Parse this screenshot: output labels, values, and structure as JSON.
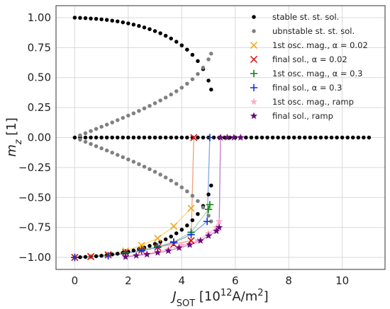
{
  "chart_data": {
    "type": "scatter",
    "xlabel": "J_SOT [10^12 A/m^2]",
    "ylabel": "m_z [1]",
    "xlim": [
      -0.7,
      11.6
    ],
    "ylim": [
      -1.1,
      1.1
    ],
    "xticks": [
      "0",
      "2",
      "4",
      "6",
      "8",
      "10"
    ],
    "yticks": [
      "1.00",
      "0.75",
      "0.50",
      "0.25",
      "0.00",
      "−0.25",
      "−0.50",
      "−0.75",
      "−1.00"
    ],
    "grid": true,
    "legend_position": "top-right",
    "series": [
      {
        "name": "stable  st. st. sol.",
        "marker": "dot",
        "color": "#000000",
        "points": [
          [
            0,
            1.0
          ],
          [
            0.2,
            0.998
          ],
          [
            0.4,
            0.996
          ],
          [
            0.6,
            0.993
          ],
          [
            0.8,
            0.99
          ],
          [
            1.0,
            0.986
          ],
          [
            1.2,
            0.981
          ],
          [
            1.4,
            0.975
          ],
          [
            1.6,
            0.969
          ],
          [
            1.8,
            0.961
          ],
          [
            2.0,
            0.952
          ],
          [
            2.2,
            0.942
          ],
          [
            2.4,
            0.931
          ],
          [
            2.6,
            0.918
          ],
          [
            2.8,
            0.904
          ],
          [
            3.0,
            0.888
          ],
          [
            3.2,
            0.87
          ],
          [
            3.4,
            0.849
          ],
          [
            3.6,
            0.826
          ],
          [
            3.8,
            0.799
          ],
          [
            4.0,
            0.769
          ],
          [
            4.2,
            0.733
          ],
          [
            4.4,
            0.69
          ],
          [
            4.6,
            0.638
          ],
          [
            4.8,
            0.571
          ],
          [
            5.0,
            0.475
          ],
          [
            5.1,
            0.4
          ],
          [
            0,
            -1.0
          ],
          [
            0.2,
            -0.998
          ],
          [
            0.4,
            -0.996
          ],
          [
            0.6,
            -0.993
          ],
          [
            0.8,
            -0.99
          ],
          [
            1.0,
            -0.986
          ],
          [
            1.2,
            -0.981
          ],
          [
            1.4,
            -0.975
          ],
          [
            1.6,
            -0.969
          ],
          [
            1.8,
            -0.961
          ],
          [
            2.0,
            -0.952
          ],
          [
            2.2,
            -0.942
          ],
          [
            2.4,
            -0.931
          ],
          [
            2.6,
            -0.918
          ],
          [
            2.8,
            -0.904
          ],
          [
            3.0,
            -0.888
          ],
          [
            3.2,
            -0.87
          ],
          [
            3.4,
            -0.849
          ],
          [
            3.6,
            -0.826
          ],
          [
            3.8,
            -0.799
          ],
          [
            4.0,
            -0.769
          ],
          [
            4.2,
            -0.733
          ],
          [
            4.4,
            -0.69
          ],
          [
            4.6,
            -0.638
          ],
          [
            4.8,
            -0.571
          ],
          [
            5.0,
            -0.475
          ],
          [
            5.1,
            -0.4
          ],
          [
            0,
            0
          ],
          [
            0.2,
            0
          ],
          [
            0.4,
            0
          ],
          [
            0.6,
            0
          ],
          [
            0.8,
            0
          ],
          [
            1.0,
            0
          ],
          [
            1.2,
            0
          ],
          [
            1.4,
            0
          ],
          [
            1.6,
            0
          ],
          [
            1.8,
            0
          ],
          [
            2.0,
            0
          ],
          [
            2.2,
            0
          ],
          [
            2.4,
            0
          ],
          [
            2.6,
            0
          ],
          [
            2.8,
            0
          ],
          [
            3.0,
            0
          ],
          [
            3.2,
            0
          ],
          [
            3.4,
            0
          ],
          [
            3.6,
            0
          ],
          [
            3.8,
            0
          ],
          [
            4.0,
            0
          ],
          [
            4.2,
            0
          ],
          [
            4.4,
            0
          ],
          [
            4.6,
            0
          ],
          [
            4.8,
            0
          ],
          [
            5.0,
            0
          ],
          [
            5.2,
            0
          ],
          [
            5.4,
            0
          ],
          [
            5.6,
            0
          ],
          [
            5.8,
            0
          ],
          [
            6.0,
            0
          ],
          [
            6.2,
            0
          ],
          [
            6.4,
            0
          ],
          [
            6.6,
            0
          ],
          [
            6.8,
            0
          ],
          [
            7.0,
            0
          ],
          [
            7.2,
            0
          ],
          [
            7.4,
            0
          ],
          [
            7.6,
            0
          ],
          [
            7.8,
            0
          ],
          [
            8.0,
            0
          ],
          [
            8.2,
            0
          ],
          [
            8.4,
            0
          ],
          [
            8.6,
            0
          ],
          [
            8.8,
            0
          ],
          [
            9.0,
            0
          ],
          [
            9.2,
            0
          ],
          [
            9.4,
            0
          ],
          [
            9.6,
            0
          ],
          [
            9.8,
            0
          ],
          [
            10.0,
            0
          ],
          [
            10.2,
            0
          ],
          [
            10.4,
            0
          ],
          [
            10.6,
            0
          ],
          [
            10.8,
            0
          ],
          [
            11.0,
            0
          ]
        ]
      },
      {
        "name": "ubnstable st. st. sol.",
        "marker": "dot",
        "color": "#808080",
        "points": [
          [
            0.2,
            0.018
          ],
          [
            0.4,
            0.036
          ],
          [
            0.6,
            0.054
          ],
          [
            0.8,
            0.072
          ],
          [
            1.0,
            0.09
          ],
          [
            1.2,
            0.108
          ],
          [
            1.4,
            0.126
          ],
          [
            1.6,
            0.145
          ],
          [
            1.8,
            0.164
          ],
          [
            2.0,
            0.183
          ],
          [
            2.2,
            0.202
          ],
          [
            2.4,
            0.222
          ],
          [
            2.6,
            0.243
          ],
          [
            2.8,
            0.264
          ],
          [
            3.0,
            0.286
          ],
          [
            3.2,
            0.309
          ],
          [
            3.4,
            0.333
          ],
          [
            3.6,
            0.359
          ],
          [
            3.8,
            0.386
          ],
          [
            4.0,
            0.416
          ],
          [
            4.2,
            0.449
          ],
          [
            4.4,
            0.486
          ],
          [
            4.6,
            0.53
          ],
          [
            4.8,
            0.583
          ],
          [
            5.0,
            0.652
          ],
          [
            5.1,
            0.7
          ],
          [
            0.2,
            -0.018
          ],
          [
            0.4,
            -0.036
          ],
          [
            0.6,
            -0.054
          ],
          [
            0.8,
            -0.072
          ],
          [
            1.0,
            -0.09
          ],
          [
            1.2,
            -0.108
          ],
          [
            1.4,
            -0.126
          ],
          [
            1.6,
            -0.145
          ],
          [
            1.8,
            -0.164
          ],
          [
            2.0,
            -0.183
          ],
          [
            2.2,
            -0.202
          ],
          [
            2.4,
            -0.222
          ],
          [
            2.6,
            -0.243
          ],
          [
            2.8,
            -0.264
          ],
          [
            3.0,
            -0.286
          ],
          [
            3.2,
            -0.309
          ],
          [
            3.4,
            -0.333
          ],
          [
            3.6,
            -0.359
          ],
          [
            3.8,
            -0.386
          ],
          [
            4.0,
            -0.416
          ],
          [
            4.2,
            -0.449
          ],
          [
            4.4,
            -0.486
          ],
          [
            4.6,
            -0.53
          ],
          [
            4.8,
            -0.583
          ],
          [
            5.0,
            -0.652
          ],
          [
            5.1,
            -0.7
          ]
        ]
      },
      {
        "name": "1st osc. mag., α = 0.02",
        "marker": "x",
        "color": "#f0a30a",
        "line_color": "#ffd680",
        "points": [
          [
            0,
            -1.0
          ],
          [
            0.6,
            -0.99
          ],
          [
            1.25,
            -0.975
          ],
          [
            1.9,
            -0.945
          ],
          [
            2.5,
            -0.9
          ],
          [
            3.1,
            -0.84
          ],
          [
            3.7,
            -0.74
          ],
          [
            4.35,
            -0.59
          ]
        ]
      },
      {
        "name": "final sol., α = 0.02",
        "marker": "x",
        "color": "#e00000",
        "line_color": "#f0a080",
        "points": [
          [
            0,
            -1.0
          ],
          [
            0.6,
            -0.994
          ],
          [
            1.25,
            -0.98
          ],
          [
            1.9,
            -0.96
          ],
          [
            2.5,
            -0.94
          ],
          [
            3.1,
            -0.915
          ],
          [
            3.7,
            -0.89
          ],
          [
            4.35,
            -0.86
          ],
          [
            4.45,
            0
          ]
        ]
      },
      {
        "name": "1st osc. mag., α = 0.3",
        "marker": "plus",
        "color": "#108010",
        "line_color": "#b0d8b0",
        "points": [
          [
            0,
            -1.0
          ],
          [
            1.25,
            -0.985
          ],
          [
            1.9,
            -0.96
          ],
          [
            2.5,
            -0.935
          ],
          [
            3.1,
            -0.91
          ],
          [
            3.7,
            -0.87
          ],
          [
            4.35,
            -0.79
          ],
          [
            5.0,
            -0.6
          ],
          [
            5.05,
            -0.56
          ]
        ]
      },
      {
        "name": "final sol., α = 0.3",
        "marker": "plus",
        "color": "#1030e0",
        "line_color": "#80a8e0",
        "points": [
          [
            0,
            -1.0
          ],
          [
            1.25,
            -0.986
          ],
          [
            1.9,
            -0.968
          ],
          [
            2.5,
            -0.945
          ],
          [
            3.1,
            -0.917
          ],
          [
            3.7,
            -0.875
          ],
          [
            4.35,
            -0.81
          ],
          [
            4.95,
            -0.7
          ],
          [
            5.05,
            0
          ]
        ]
      },
      {
        "name": "1st osc. mag., ramp",
        "marker": "star",
        "color": "#ffaacc",
        "line_color": "#ffc0d8",
        "points": [
          [
            1.9,
            -0.995
          ],
          [
            2.7,
            -0.97
          ],
          [
            3.5,
            -0.93
          ],
          [
            4.0,
            -0.9
          ],
          [
            4.6,
            -0.86
          ],
          [
            5.0,
            -0.8
          ],
          [
            5.3,
            -0.75
          ],
          [
            5.4,
            -0.7
          ],
          [
            5.45,
            0
          ]
        ]
      },
      {
        "name": "final sol., ramp",
        "marker": "star",
        "color": "#6a0a7a",
        "line_color": "#c080d0",
        "points": [
          [
            1.9,
            -0.995
          ],
          [
            2.3,
            -0.985
          ],
          [
            2.7,
            -0.975
          ],
          [
            3.1,
            -0.96
          ],
          [
            3.5,
            -0.945
          ],
          [
            3.9,
            -0.92
          ],
          [
            4.3,
            -0.895
          ],
          [
            4.7,
            -0.86
          ],
          [
            5.0,
            -0.82
          ],
          [
            5.3,
            -0.78
          ],
          [
            5.4,
            -0.75
          ],
          [
            5.45,
            0
          ],
          [
            5.7,
            0
          ],
          [
            5.95,
            0
          ],
          [
            6.2,
            0
          ]
        ]
      }
    ]
  }
}
